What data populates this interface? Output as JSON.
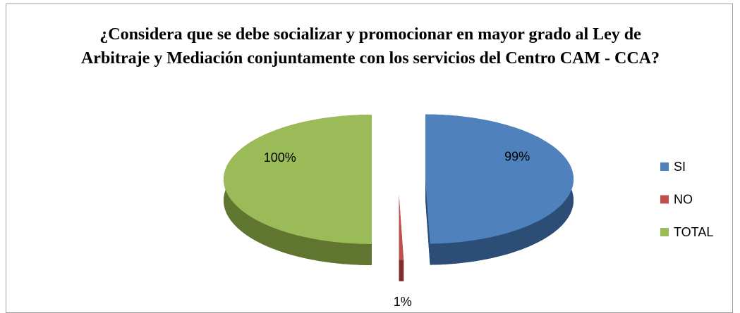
{
  "chart_data": {
    "type": "pie",
    "title": "¿Considera que se debe socializar y promocionar en mayor grado al Ley de Arbitraje y Mediación conjuntamente con los servicios del Centro CAM - CCA?",
    "categories": [
      "SI",
      "NO",
      "TOTAL"
    ],
    "values": [
      99,
      1,
      100
    ],
    "value_labels": [
      "99%",
      "1%",
      "100%"
    ],
    "colors": [
      "#4f81bd",
      "#c0504d",
      "#9bbb59"
    ],
    "side_colors": [
      "#2c4d75",
      "#7f2e2c",
      "#5f7530"
    ],
    "legend": "right"
  }
}
